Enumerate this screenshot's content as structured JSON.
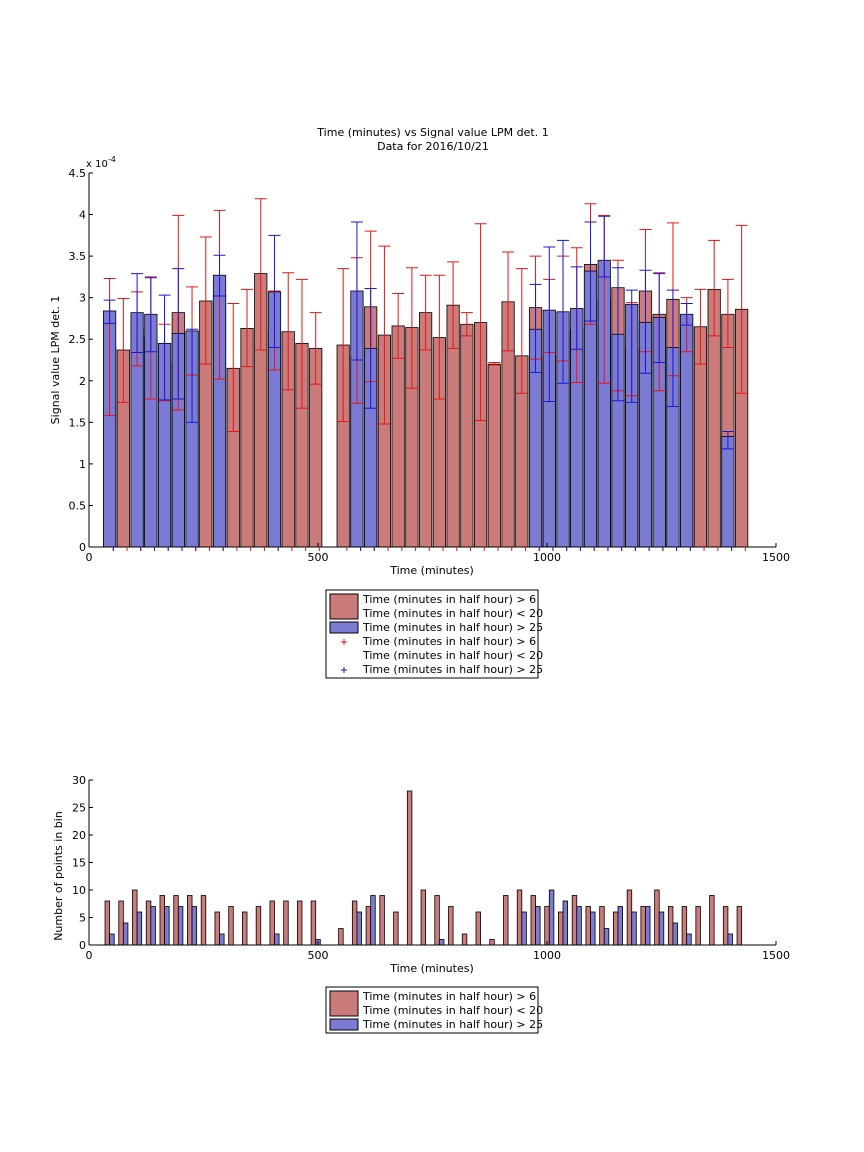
{
  "figure": {
    "title_line1": "Time (minutes) vs Signal value LPM det. 1",
    "title_line2": "Data for 2016/10/21"
  },
  "colors": {
    "bar_red": "#cc7b7b",
    "bar_blue": "#7b7bd4",
    "err_red": "#e01818",
    "err_blue": "#1818d8",
    "axis": "#000000"
  },
  "chart_data": [
    {
      "type": "bar",
      "xlabel": "Time (minutes)",
      "ylabel": "Signal value LPM det. 1",
      "exponent_label": "x 10",
      "exponent_power": "-4",
      "xlim": [
        0,
        1500
      ],
      "ylim": [
        0,
        4.5
      ],
      "xticks": [
        "0",
        "500",
        "1000",
        "1500"
      ],
      "yticks": [
        "0",
        "0.5",
        "1",
        "1.5",
        "2",
        "2.5",
        "3",
        "3.5",
        "4",
        "4.5"
      ],
      "grid": false,
      "legend_position": "below",
      "legend": [
        {
          "kind": "bar",
          "color": "red",
          "line1": "Time (minutes in half hour) > 6",
          "line2": "Time (minutes in half hour) < 20"
        },
        {
          "kind": "bar",
          "color": "blue",
          "line1": "Time (minutes in half hour) > 25",
          "line2": ""
        },
        {
          "kind": "marker",
          "color": "red",
          "line1": "Time (minutes in half hour) > 6",
          "line2": "Time (minutes in half hour) < 20"
        },
        {
          "kind": "marker",
          "color": "blue",
          "line1": "Time (minutes in half hour) > 25",
          "line2": ""
        }
      ],
      "series": [
        {
          "color": "red",
          "x": [
            45,
            75,
            105,
            135,
            165,
            195,
            225,
            255,
            285,
            315,
            345,
            375,
            405,
            435,
            465,
            495,
            555,
            585,
            615,
            645,
            675,
            705,
            735,
            765,
            795,
            825,
            855,
            885,
            915,
            945,
            975,
            1005,
            1035,
            1065,
            1095,
            1125,
            1155,
            1185,
            1215,
            1245,
            1275,
            1305,
            1335,
            1365,
            1395,
            1425
          ],
          "values": [
            2.4,
            2.37,
            2.62,
            2.52,
            2.22,
            2.82,
            2.6,
            2.96,
            3.03,
            2.15,
            2.63,
            3.29,
            2.6,
            2.59,
            2.45,
            2.39,
            2.43,
            2.3,
            2.89,
            2.55,
            2.66,
            2.64,
            2.82,
            2.52,
            2.91,
            2.68,
            2.7,
            2.2,
            2.95,
            2.3,
            2.88,
            2.3,
            2.6,
            2.62,
            3.4,
            2.98,
            3.12,
            2.38,
            3.08,
            2.8,
            2.98,
            2.65,
            2.65,
            3.1,
            2.8,
            2.86
          ],
          "err_low": [
            1.58,
            1.74,
            2.18,
            1.78,
            1.76,
            1.65,
            2.07,
            2.2,
            2.02,
            1.39,
            2.17,
            2.37,
            2.13,
            1.89,
            1.67,
            1.96,
            1.51,
            1.73,
            1.99,
            1.48,
            2.27,
            1.91,
            2.37,
            1.78,
            2.39,
            2.54,
            1.52,
            2.19,
            2.36,
            1.85,
            2.26,
            2.34,
            2.24,
            1.98,
            2.68,
            1.97,
            1.88,
            1.82,
            2.35,
            1.88,
            2.06,
            2.35,
            2.2,
            2.54,
            2.4,
            1.85
          ],
          "err_high": [
            3.23,
            2.99,
            3.07,
            3.25,
            2.68,
            3.99,
            3.13,
            3.73,
            4.05,
            2.93,
            3.1,
            4.19,
            3.08,
            3.3,
            3.22,
            2.82,
            3.35,
            3.48,
            3.8,
            3.62,
            3.05,
            3.36,
            3.27,
            3.27,
            3.43,
            2.82,
            3.89,
            2.22,
            3.55,
            3.35,
            3.5,
            3.22,
            3.5,
            3.6,
            4.13,
            3.99,
            3.45,
            2.94,
            3.82,
            3.3,
            3.9,
            3.0,
            3.1,
            3.69,
            3.22,
            3.87
          ]
        },
        {
          "color": "blue",
          "x": [
            45,
            105,
            135,
            165,
            195,
            225,
            285,
            405,
            585,
            615,
            975,
            1005,
            1035,
            1065,
            1095,
            1125,
            1155,
            1185,
            1215,
            1245,
            1275,
            1305,
            1395
          ],
          "values": [
            2.84,
            2.82,
            2.8,
            2.45,
            2.57,
            2.6,
            3.27,
            3.07,
            3.08,
            2.39,
            2.62,
            2.85,
            2.83,
            2.87,
            3.32,
            3.45,
            2.56,
            2.92,
            2.7,
            2.76,
            2.4,
            2.8,
            1.33
          ],
          "err_low": [
            2.69,
            2.34,
            2.35,
            1.77,
            1.78,
            1.5,
            3.02,
            2.4,
            2.25,
            1.67,
            2.1,
            1.75,
            1.97,
            2.38,
            2.72,
            3.25,
            1.76,
            1.74,
            2.09,
            2.22,
            1.69,
            2.67,
            1.18
          ],
          "err_high": [
            2.97,
            3.29,
            3.24,
            3.03,
            3.35,
            2.62,
            3.51,
            3.75,
            3.91,
            3.11,
            3.16,
            3.61,
            3.69,
            3.37,
            3.91,
            3.98,
            3.36,
            3.09,
            3.33,
            3.29,
            3.09,
            2.93,
            1.39
          ]
        }
      ]
    },
    {
      "type": "bar",
      "xlabel": "Time (minutes)",
      "ylabel": "Number of points in bin",
      "xlim": [
        0,
        1500
      ],
      "ylim": [
        0,
        30
      ],
      "xticks": [
        "0",
        "500",
        "1000",
        "1500"
      ],
      "yticks": [
        "0",
        "5",
        "10",
        "15",
        "20",
        "25",
        "30"
      ],
      "grid": false,
      "legend_position": "below",
      "legend": [
        {
          "kind": "bar",
          "color": "red",
          "line1": "Time (minutes in half hour) > 6",
          "line2": "Time (minutes in half hour) < 20"
        },
        {
          "kind": "bar",
          "color": "blue",
          "line1": "Time (minutes in half hour) > 25",
          "line2": ""
        }
      ],
      "series": [
        {
          "color": "red",
          "x": [
            40,
            70,
            100,
            130,
            160,
            190,
            220,
            250,
            280,
            310,
            340,
            370,
            400,
            430,
            460,
            490,
            550,
            580,
            610,
            640,
            670,
            700,
            730,
            760,
            790,
            820,
            850,
            880,
            910,
            940,
            970,
            1000,
            1030,
            1060,
            1090,
            1120,
            1150,
            1180,
            1210,
            1240,
            1270,
            1300,
            1330,
            1360,
            1390,
            1420
          ],
          "values": [
            8,
            8,
            10,
            8,
            9,
            9,
            9,
            9,
            6,
            7,
            6,
            7,
            8,
            8,
            8,
            8,
            3,
            8,
            7,
            9,
            6,
            28,
            10,
            9,
            7,
            2,
            6,
            1,
            9,
            10,
            9,
            7,
            6,
            9,
            7,
            7,
            6,
            10,
            7,
            10,
            7,
            7,
            7,
            9,
            7,
            7
          ]
        },
        {
          "color": "blue",
          "x": [
            50,
            80,
            110,
            140,
            170,
            200,
            230,
            290,
            410,
            500,
            590,
            620,
            770,
            950,
            980,
            1010,
            1040,
            1070,
            1100,
            1130,
            1160,
            1190,
            1220,
            1250,
            1280,
            1310,
            1400
          ],
          "values": [
            2,
            4,
            6,
            7,
            7,
            7,
            7,
            2,
            2,
            1,
            6,
            9,
            1,
            6,
            7,
            10,
            8,
            7,
            6,
            3,
            7,
            6,
            7,
            6,
            4,
            2,
            2
          ]
        }
      ]
    }
  ]
}
